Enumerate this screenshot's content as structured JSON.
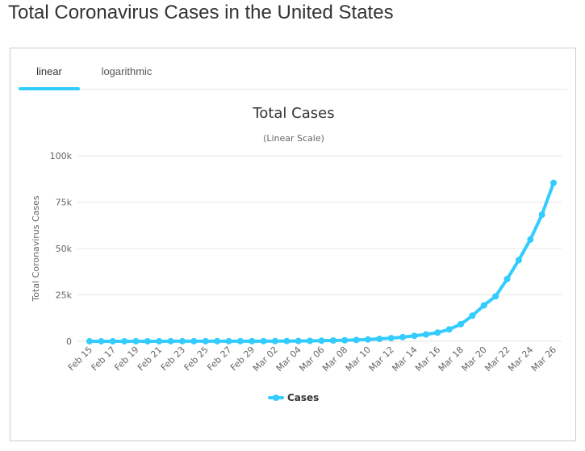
{
  "page": {
    "title": "Total Coronavirus Cases in the United States"
  },
  "tabs": [
    {
      "label": "linear",
      "active": true
    },
    {
      "label": "logarithmic",
      "active": false
    }
  ],
  "colors": {
    "series": "#33ccff",
    "grid": "#e6e6e6",
    "tab_active": "#33ccff"
  },
  "chart_data": {
    "type": "line",
    "title": "Total Cases",
    "subtitle": "(Linear Scale)",
    "ylabel": "Total Coronavirus Cases",
    "xlabel": "",
    "ylim": [
      0,
      100000
    ],
    "y_ticks": [
      {
        "value": 0,
        "label": "0"
      },
      {
        "value": 25000,
        "label": "25k"
      },
      {
        "value": 50000,
        "label": "50k"
      },
      {
        "value": 75000,
        "label": "75k"
      },
      {
        "value": 100000,
        "label": "100k"
      }
    ],
    "grid": true,
    "legend": "bottom",
    "categories": [
      "Feb 15",
      "Feb 16",
      "Feb 17",
      "Feb 18",
      "Feb 19",
      "Feb 20",
      "Feb 21",
      "Feb 22",
      "Feb 23",
      "Feb 24",
      "Feb 25",
      "Feb 26",
      "Feb 27",
      "Feb 28",
      "Feb 29",
      "Mar 01",
      "Mar 02",
      "Mar 03",
      "Mar 04",
      "Mar 05",
      "Mar 06",
      "Mar 07",
      "Mar 08",
      "Mar 09",
      "Mar 10",
      "Mar 11",
      "Mar 12",
      "Mar 13",
      "Mar 14",
      "Mar 15",
      "Mar 16",
      "Mar 17",
      "Mar 18",
      "Mar 19",
      "Mar 20",
      "Mar 21",
      "Mar 22",
      "Mar 23",
      "Mar 24",
      "Mar 25",
      "Mar 26"
    ],
    "x_tick_labels": [
      "Feb 15",
      "Feb 17",
      "Feb 19",
      "Feb 21",
      "Feb 23",
      "Feb 25",
      "Feb 27",
      "Feb 29",
      "Mar 02",
      "Mar 04",
      "Mar 06",
      "Mar 08",
      "Mar 10",
      "Mar 12",
      "Mar 14",
      "Mar 16",
      "Mar 18",
      "Mar 20",
      "Mar 22",
      "Mar 24",
      "Mar 26"
    ],
    "series": [
      {
        "name": "Cases",
        "values": [
          15,
          15,
          15,
          15,
          15,
          15,
          15,
          35,
          35,
          53,
          57,
          60,
          60,
          62,
          68,
          75,
          100,
          124,
          158,
          221,
          319,
          435,
          541,
          704,
          994,
          1301,
          1697,
          2247,
          2943,
          3680,
          4663,
          6411,
          9197,
          13779,
          19367,
          24207,
          33546,
          43734,
          54821,
          68211,
          85356
        ]
      }
    ]
  }
}
